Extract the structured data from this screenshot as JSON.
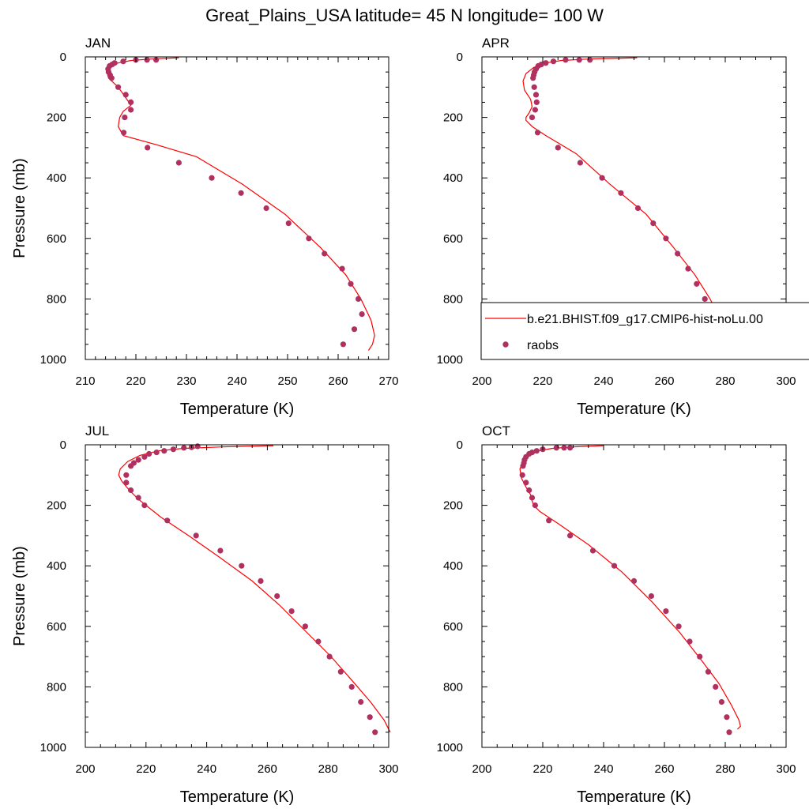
{
  "figure": {
    "title": "Great_Plains_USA  latitude= 45 N longitude= 100 W"
  },
  "legend": {
    "model_label": "b.e21.BHIST.f09_g17.CMIP6-hist-noLu.00",
    "obs_label": "raobs",
    "model_color": "#ff0000",
    "obs_color": "#b03060"
  },
  "chart_data": [
    {
      "type": "line",
      "panel": "JAN",
      "xlabel": "Temperature (K)",
      "ylabel": "Pressure (mb)",
      "xlim": [
        210,
        270
      ],
      "ylim": [
        1000,
        0
      ],
      "xticks": [
        210,
        220,
        230,
        240,
        250,
        260,
        270
      ],
      "yticks": [
        0,
        200,
        400,
        600,
        800,
        1000
      ],
      "model": {
        "name": "b.e21.BHIST.f09_g17.CMIP6-hist-noLu.00",
        "temperature": [
          228.5,
          223.0,
          219.0,
          216.5,
          215.0,
          214.2,
          214.6,
          216.5,
          218.2,
          219.0,
          217.5,
          216.8,
          216.5,
          217.5,
          224.0,
          232.0,
          241.0,
          249.5,
          256.5,
          261.5,
          264.5,
          266.5,
          267.2,
          266.8,
          266.0
        ],
        "pressure": [
          3,
          7,
          12,
          20,
          30,
          45,
          70,
          100,
          140,
          160,
          180,
          200,
          230,
          260,
          290,
          330,
          420,
          520,
          630,
          720,
          800,
          870,
          920,
          950,
          970
        ]
      },
      "obs": {
        "name": "raobs",
        "temperature": [
          224.0,
          222.2,
          220.0,
          217.5,
          215.8,
          215.3,
          214.8,
          214.5,
          214.6,
          214.9,
          215.2,
          216.5,
          218.0,
          219.0,
          219.0,
          217.8,
          217.6,
          222.3,
          228.5,
          235.0,
          240.8,
          245.8,
          250.2,
          254.2,
          257.3,
          260.8,
          262.5,
          264.0,
          264.7,
          263.2,
          261.0
        ],
        "pressure": [
          10,
          10,
          10,
          15,
          20,
          25,
          30,
          40,
          50,
          60,
          70,
          100,
          125,
          150,
          175,
          200,
          250,
          300,
          350,
          400,
          450,
          500,
          550,
          600,
          650,
          700,
          750,
          800,
          850,
          900,
          950
        ]
      }
    },
    {
      "type": "line",
      "panel": "APR",
      "xlabel": "Temperature (K)",
      "ylabel": "",
      "xlim": [
        200,
        300
      ],
      "ylim": [
        1000,
        0
      ],
      "xticks": [
        200,
        220,
        240,
        260,
        280,
        300
      ],
      "yticks": [
        0,
        200,
        400,
        600,
        800,
        1000
      ],
      "model": {
        "name": "b.e21.BHIST.f09_g17.CMIP6-hist-noLu.00",
        "temperature": [
          251.0,
          235.0,
          226.0,
          221.0,
          217.0,
          214.5,
          213.5,
          214.0,
          216.0,
          216.5,
          215.5,
          214.5,
          214.5,
          216.5,
          221.0,
          231.0,
          242.0,
          254.0,
          263.0,
          270.0,
          275.0,
          279.0,
          281.0
        ],
        "pressure": [
          3,
          7,
          12,
          20,
          35,
          55,
          80,
          110,
          140,
          165,
          185,
          200,
          210,
          230,
          260,
          320,
          420,
          520,
          630,
          720,
          800,
          880,
          940
        ]
      },
      "obs": {
        "name": "raobs",
        "temperature": [
          235.5,
          232.0,
          227.5,
          223.5,
          221.0,
          219.5,
          218.5,
          217.8,
          217.3,
          217.0,
          216.8,
          217.2,
          217.8,
          218.0,
          217.5,
          216.5,
          218.3,
          225.0,
          232.3,
          239.5,
          245.7,
          251.3,
          256.3,
          260.5,
          264.3,
          267.8,
          270.6,
          273.3,
          275.8,
          277.8,
          279.3
        ],
        "pressure": [
          10,
          10,
          10,
          15,
          20,
          25,
          30,
          40,
          50,
          60,
          70,
          100,
          125,
          150,
          175,
          200,
          250,
          300,
          350,
          400,
          450,
          500,
          550,
          600,
          650,
          700,
          750,
          800,
          850,
          900,
          950
        ]
      }
    },
    {
      "type": "line",
      "panel": "JUL",
      "xlabel": "Temperature (K)",
      "ylabel": "Pressure (mb)",
      "xlim": [
        200,
        300
      ],
      "ylim": [
        1000,
        0
      ],
      "xticks": [
        200,
        220,
        240,
        260,
        280,
        300
      ],
      "yticks": [
        0,
        200,
        400,
        600,
        800,
        1000
      ],
      "model": {
        "name": "b.e21.BHIST.f09_g17.CMIP6-hist-noLu.00",
        "temperature": [
          262.0,
          245.0,
          232.0,
          224.0,
          218.0,
          214.0,
          211.5,
          211.0,
          212.0,
          214.5,
          217.5,
          220.0,
          225.0,
          234.0,
          244.0,
          255.0,
          264.0,
          273.0,
          281.0,
          288.0,
          294.0,
          298.5,
          300.5
        ],
        "pressure": [
          3,
          7,
          12,
          20,
          35,
          55,
          80,
          100,
          120,
          150,
          180,
          200,
          240,
          300,
          370,
          450,
          530,
          620,
          700,
          780,
          850,
          910,
          950
        ]
      },
      "obs": {
        "name": "raobs",
        "temperature": [
          237.0,
          235.0,
          232.5,
          229.0,
          226.0,
          223.5,
          221.0,
          219.5,
          217.5,
          216.0,
          215.0,
          213.5,
          213.5,
          215.0,
          217.5,
          219.5,
          227.0,
          236.5,
          244.5,
          251.5,
          257.8,
          263.2,
          268.0,
          272.5,
          276.8,
          280.5,
          284.2,
          287.8,
          290.8,
          293.8,
          295.5
        ],
        "pressure": [
          5,
          8,
          10,
          15,
          20,
          25,
          30,
          40,
          50,
          60,
          70,
          100,
          125,
          150,
          175,
          200,
          250,
          300,
          350,
          400,
          450,
          500,
          550,
          600,
          650,
          700,
          750,
          800,
          850,
          900,
          950
        ]
      }
    },
    {
      "type": "line",
      "panel": "OCT",
      "xlabel": "Temperature (K)",
      "ylabel": "",
      "xlim": [
        200,
        300
      ],
      "ylim": [
        1000,
        0
      ],
      "xticks": [
        200,
        220,
        240,
        260,
        280,
        300
      ],
      "yticks": [
        0,
        200,
        400,
        600,
        800,
        1000
      ],
      "model": {
        "name": "b.e21.BHIST.f09_g17.CMIP6-hist-noLu.00",
        "temperature": [
          240.0,
          230.0,
          223.0,
          218.5,
          215.5,
          213.5,
          212.5,
          213.0,
          214.5,
          216.0,
          216.5,
          217.0,
          219.0,
          225.0,
          235.0,
          246.0,
          256.0,
          265.0,
          272.0,
          278.0,
          282.0,
          284.5,
          285.0,
          284.0
        ],
        "pressure": [
          3,
          7,
          12,
          20,
          35,
          55,
          80,
          110,
          140,
          165,
          185,
          200,
          220,
          260,
          330,
          420,
          520,
          620,
          710,
          790,
          860,
          910,
          930,
          940
        ]
      },
      "obs": {
        "name": "raobs",
        "temperature": [
          229.0,
          227.0,
          224.5,
          220.0,
          218.0,
          216.5,
          215.5,
          214.5,
          214.0,
          213.8,
          213.5,
          213.3,
          214.5,
          215.5,
          216.5,
          217.5,
          222.0,
          229.0,
          236.5,
          243.5,
          250.0,
          255.7,
          260.5,
          264.7,
          268.3,
          271.6,
          274.4,
          276.8,
          278.8,
          280.5,
          281.3
        ],
        "pressure": [
          10,
          10,
          10,
          15,
          20,
          25,
          30,
          40,
          50,
          60,
          70,
          100,
          125,
          150,
          175,
          200,
          250,
          300,
          350,
          400,
          450,
          500,
          550,
          600,
          650,
          700,
          750,
          800,
          850,
          900,
          950
        ]
      }
    }
  ]
}
